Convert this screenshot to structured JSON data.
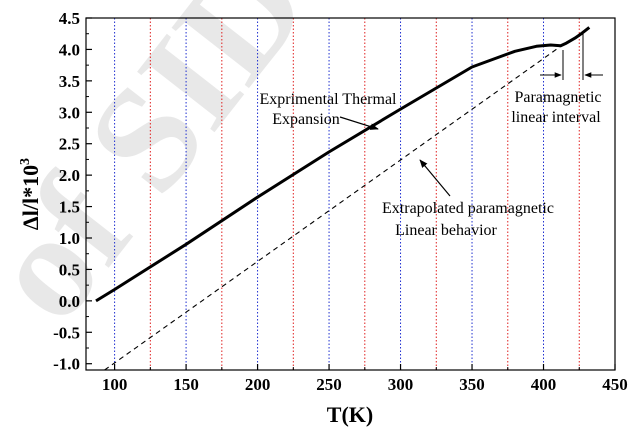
{
  "chart_data": {
    "type": "line",
    "xlabel": "T(K)",
    "ylabel": "Δl/l*10",
    "ylabel_sup": "3",
    "xlim": [
      80,
      450
    ],
    "ylim": [
      -1.1,
      4.5
    ],
    "xticks": [
      "100",
      "150",
      "200",
      "250",
      "300",
      "350",
      "400",
      "450"
    ],
    "yticks": [
      "-1.0",
      "-0.5",
      "0.0",
      "0.5",
      "1.0",
      "1.5",
      "2.0",
      "2.5",
      "3.0",
      "3.5",
      "4.0",
      "4.5"
    ],
    "grid_blue_x": [
      100,
      150,
      200,
      250,
      300,
      350,
      400
    ],
    "grid_red_x": [
      125,
      175,
      225,
      275,
      325,
      375,
      425
    ],
    "series": [
      {
        "style": "solid",
        "x": [
          87,
          100,
          150,
          200,
          250,
          300,
          350,
          380,
          395,
          405,
          412,
          416,
          422,
          427,
          432
        ],
        "y": [
          0.0,
          0.18,
          0.9,
          1.65,
          2.37,
          3.05,
          3.72,
          3.97,
          4.05,
          4.07,
          4.06,
          4.1,
          4.18,
          4.26,
          4.35
        ]
      },
      {
        "style": "dashed",
        "x": [
          93,
          412
        ],
        "y": [
          -1.1,
          4.05
        ]
      }
    ],
    "annotations": [
      {
        "lines": [
          "Exprimental Thermal",
          "Expansion"
        ]
      },
      {
        "lines": [
          "Extrapolated paramagnetic",
          "Linear behavior"
        ]
      },
      {
        "lines": [
          "Paramagnetic",
          "linear interval"
        ]
      }
    ],
    "legend": "none",
    "watermark": "Archive of SID"
  }
}
